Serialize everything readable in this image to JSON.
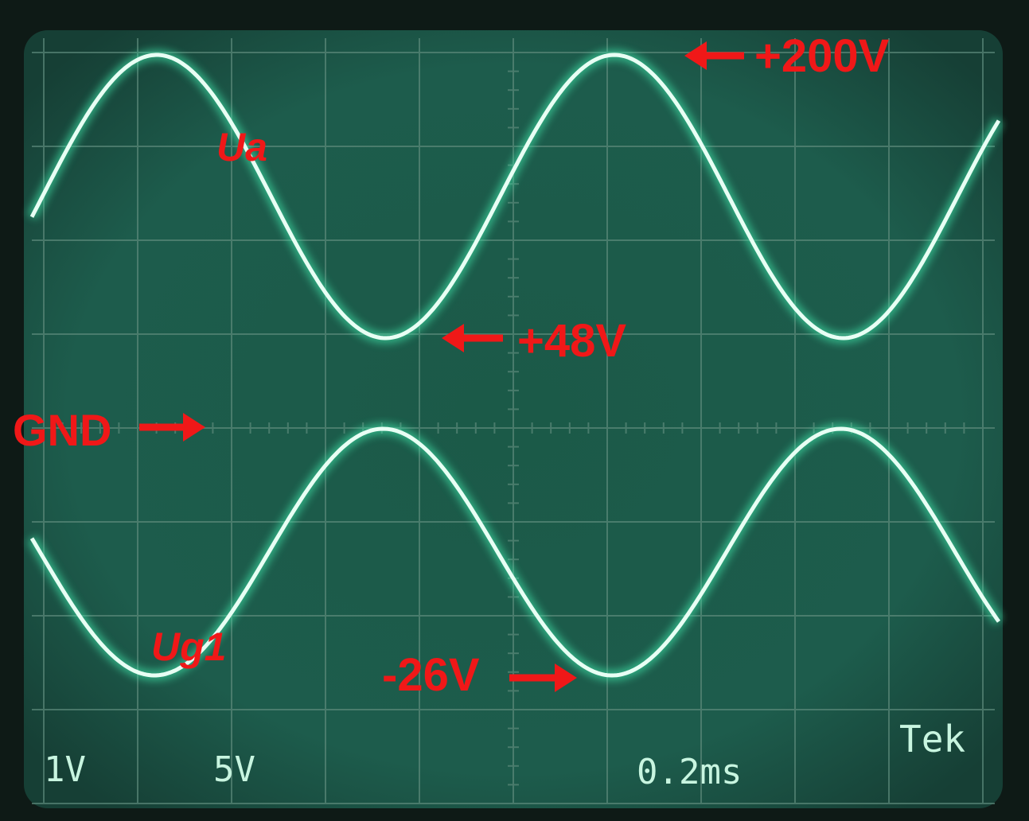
{
  "annotations": {
    "peak_top": "+200V",
    "trace_a": "Ua",
    "trough_top": "+48V",
    "ground": "GND",
    "trace_g": "Ug1",
    "trough_bottom": "-26V"
  },
  "readouts": {
    "ch1": "1V",
    "ch2": "5V",
    "timebase": "0.2ms",
    "brand": "Tek"
  }
}
